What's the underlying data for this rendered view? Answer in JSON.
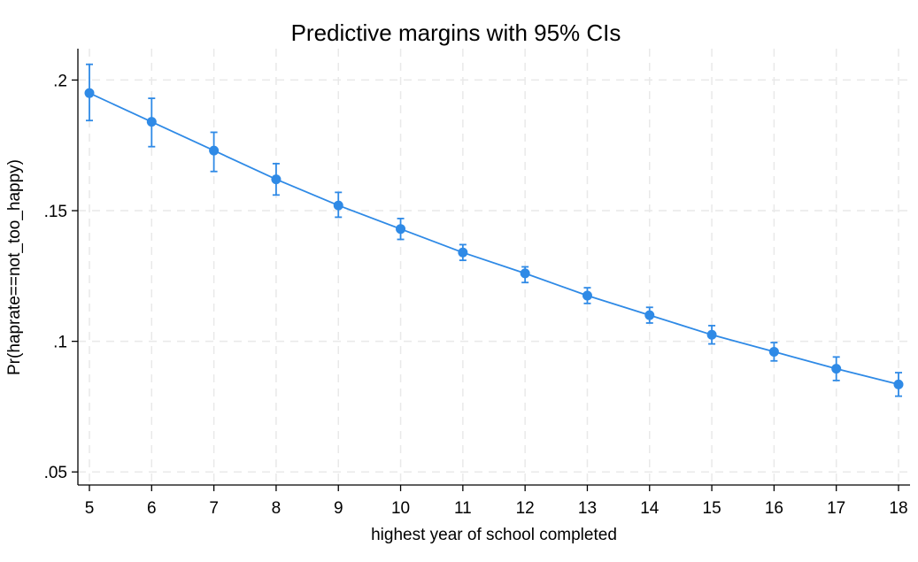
{
  "chart_data": {
    "type": "line",
    "title": "Predictive margins with 95% CIs",
    "xlabel": "highest year of school completed",
    "ylabel": "Pr(haprate==not_too_happy)",
    "xlim": [
      5,
      18
    ],
    "ylim": [
      0.045,
      0.212
    ],
    "x_ticks": [
      5,
      6,
      7,
      8,
      9,
      10,
      11,
      12,
      13,
      14,
      15,
      16,
      17,
      18
    ],
    "y_ticks": [
      {
        "value": 0.05,
        "label": ".05"
      },
      {
        "value": 0.1,
        "label": ".1"
      },
      {
        "value": 0.15,
        "label": ".15"
      },
      {
        "value": 0.2,
        "label": ".2"
      }
    ],
    "grid": true,
    "color": "#2f8ae6",
    "series": [
      {
        "x": [
          5,
          6,
          7,
          8,
          9,
          10,
          11,
          12,
          13,
          14,
          15,
          16,
          17,
          18
        ],
        "values": [
          0.195,
          0.184,
          0.173,
          0.162,
          0.152,
          0.143,
          0.134,
          0.126,
          0.1175,
          0.11,
          0.1025,
          0.096,
          0.0895,
          0.0835
        ],
        "ci_lower": [
          0.1845,
          0.1745,
          0.165,
          0.156,
          0.1475,
          0.139,
          0.131,
          0.1225,
          0.1145,
          0.107,
          0.099,
          0.0925,
          0.085,
          0.079
        ],
        "ci_upper": [
          0.206,
          0.193,
          0.18,
          0.168,
          0.157,
          0.147,
          0.137,
          0.1285,
          0.1205,
          0.113,
          0.106,
          0.0995,
          0.094,
          0.088
        ]
      }
    ]
  }
}
